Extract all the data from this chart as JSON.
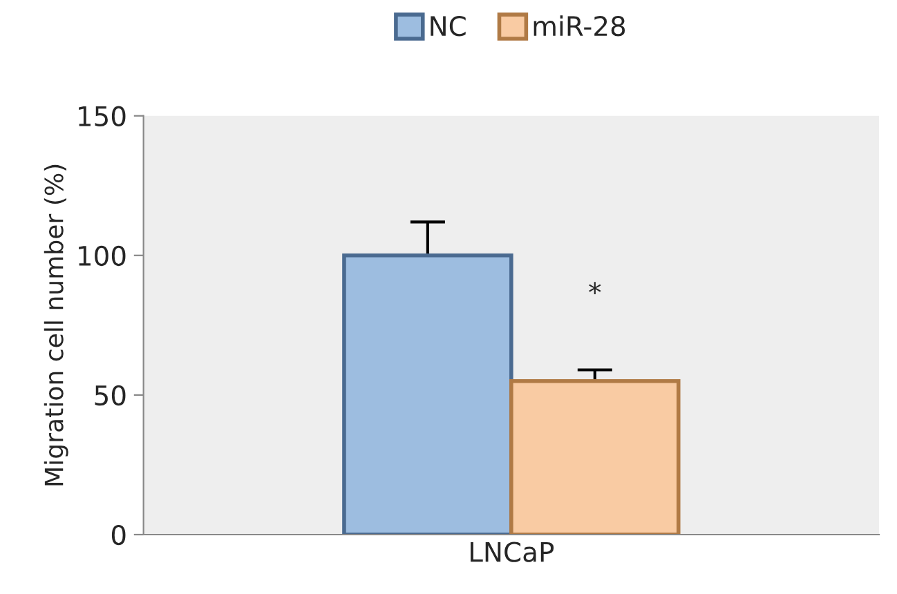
{
  "chart_data": {
    "type": "bar",
    "ylabel": "Migration cell number (%)",
    "categories": [
      "LNCaP"
    ],
    "series": [
      {
        "name": "NC",
        "color": "#9dbde0",
        "values": [
          100
        ],
        "errors": [
          12
        ]
      },
      {
        "name": "miR-28",
        "color": "#f9cba3",
        "values": [
          55
        ],
        "errors": [
          4
        ]
      }
    ],
    "ylim": [
      0,
      150
    ],
    "yticks": [
      0,
      50,
      100,
      150
    ],
    "grid": false,
    "legend": "top",
    "annotations": [
      {
        "text": "*",
        "x": "LNCaP",
        "y": 86
      }
    ]
  }
}
